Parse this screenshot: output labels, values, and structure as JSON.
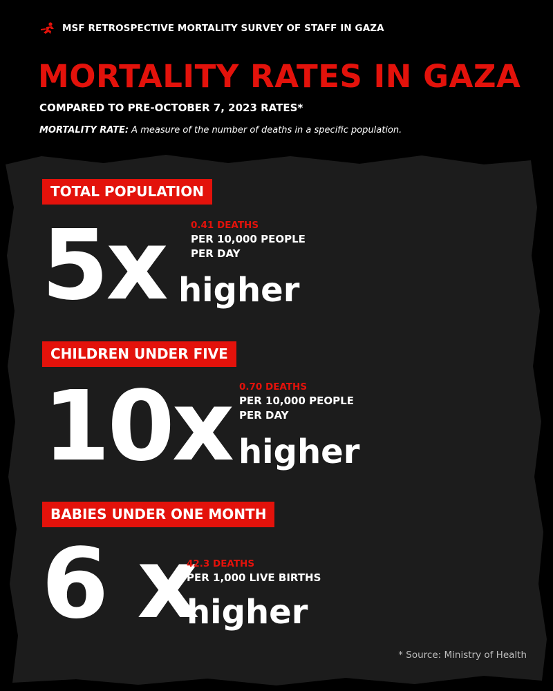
{
  "colors": {
    "accent": "#e3120b",
    "background": "#000000",
    "texture": "#1c1c1c",
    "text": "#ffffff",
    "muted": "#bdbdbd"
  },
  "header": {
    "logo_icon": "msf-running-man-logo-icon",
    "label": "MSF RETROSPECTIVE MORTALITY SURVEY OF STAFF IN GAZA"
  },
  "title": "MORTALITY RATES IN GAZA",
  "subtitle": "COMPARED TO PRE-OCTOBER 7, 2023 RATES*",
  "definition": {
    "term": "MORTALITY RATE:",
    "text": " A measure of the number of deaths in a specific population."
  },
  "sections": [
    {
      "label": "TOTAL POPULATION",
      "multiplier": "5x",
      "comparison": "higher",
      "rate": "0.41 DEATHS",
      "unit_lines": [
        "PER 10,000 PEOPLE",
        "PER DAY"
      ]
    },
    {
      "label": "CHILDREN UNDER FIVE",
      "multiplier": "10x",
      "comparison": "higher",
      "rate": "0.70 DEATHS",
      "unit_lines": [
        "PER 10,000 PEOPLE",
        "PER DAY"
      ]
    },
    {
      "label": "BABIES UNDER ONE MONTH",
      "multiplier": "6 x",
      "comparison": "higher",
      "rate": "42.3 DEATHS",
      "unit_lines": [
        "PER 1,000 LIVE BIRTHS"
      ]
    }
  ],
  "footnote": "*  Source: Ministry of Health"
}
